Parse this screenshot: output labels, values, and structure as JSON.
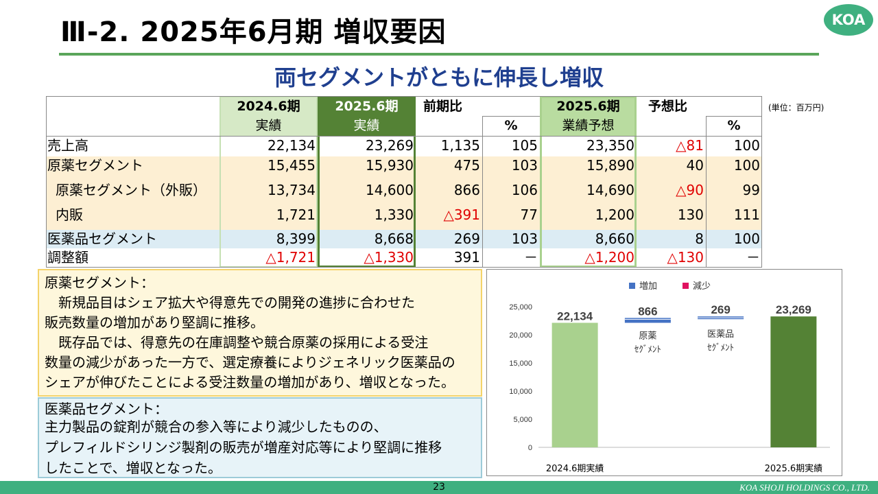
{
  "header": {
    "title": "Ⅲ-2.  2025年6月期 増収要因",
    "logo": "KOA",
    "subtitle": "両セグメントがともに伸長し増収"
  },
  "table": {
    "unit": "(単位：百万円)",
    "headers": {
      "c1_top": "2024.6期",
      "c1_bottom": "実績",
      "c2_top": "2025.6期",
      "c2_bottom": "実績",
      "c3_top": "前期比",
      "c4_bottom": "%",
      "c5_top": "2025.6期",
      "c5_bottom": "業績予想",
      "c6_top": "予想比",
      "c7_bottom": "%"
    },
    "rows": [
      {
        "label": "売上高",
        "v": [
          "22,134",
          "23,269",
          "1,135",
          "105",
          "23,350",
          "△81",
          "100"
        ]
      },
      {
        "label": "原薬セグメント",
        "v": [
          "15,455",
          "15,930",
          "475",
          "103",
          "15,890",
          "40",
          "100"
        ]
      },
      {
        "label": "原薬セグメント（外販）",
        "v": [
          "13,734",
          "14,600",
          "866",
          "106",
          "14,690",
          "△90",
          "99"
        ]
      },
      {
        "label": "内販",
        "v": [
          "1,721",
          "1,330",
          "△391",
          "77",
          "1,200",
          "130",
          "111"
        ]
      },
      {
        "label": "医薬品セグメント",
        "v": [
          "8,399",
          "8,668",
          "269",
          "103",
          "8,660",
          "8",
          "100"
        ]
      },
      {
        "label": "調整額",
        "v": [
          "△1,721",
          "△1,330",
          "391",
          "－",
          "△1,200",
          "△130",
          "－"
        ]
      }
    ],
    "colors": {
      "c1": "#d6e9c6",
      "c2": "#548235",
      "c5": "#b9dca0",
      "segment_row": "#fdefd3",
      "drug_row": "#dcecf4",
      "negative": "#e00000"
    }
  },
  "notes": {
    "box1": [
      "原薬セグメント：",
      "　新規品目はシェア拡大や得意先での開発の進捗に合わせた",
      "販売数量の増加があり堅調に推移。",
      "　既存品では、得意先の在庫調整や競合原薬の採用による受注",
      "数量の減少があった一方で、選定療養によりジェネリック医薬品の",
      "シェアが伸びたことによる受注数量の増加があり、増収となった。"
    ],
    "box2": [
      "医薬品セグメント：",
      "主力製品の錠剤が競合の参入等により減少したものの、",
      "プレフィルドシリンジ製剤の販売が増産対応等により堅調に推移",
      "したことで、増収となった。"
    ]
  },
  "chart_data": {
    "type": "bar",
    "subtype": "waterfall",
    "categories": [
      "2024.6期実績",
      "原薬セグメント",
      "医薬品セグメント",
      "2025.6期実績"
    ],
    "category_labels": [
      "2024.6期実績",
      "原薬\nｾｸﾞﾒﾝﾄ",
      "医薬品\nｾｸﾞﾒﾝﾄ",
      "2025.6期実績"
    ],
    "values": [
      22134,
      866,
      269,
      23269
    ],
    "value_labels": [
      "22,134",
      "866",
      "269",
      "23,269"
    ],
    "legend": [
      {
        "name": "増加",
        "color": "#4472c4"
      },
      {
        "name": "減少",
        "color": "#e0115f"
      }
    ],
    "legend_position": "top",
    "ylim": [
      0,
      25000
    ],
    "yticks": [
      "0",
      "5,000",
      "10,000",
      "15,000",
      "20,000",
      "25,000"
    ],
    "colors": {
      "start": "#a9d18e",
      "end": "#548235",
      "increase": "#4472c4"
    }
  },
  "footer": {
    "page": "23",
    "company": "KOA SHOJI HOLDINGS CO., LTD."
  }
}
